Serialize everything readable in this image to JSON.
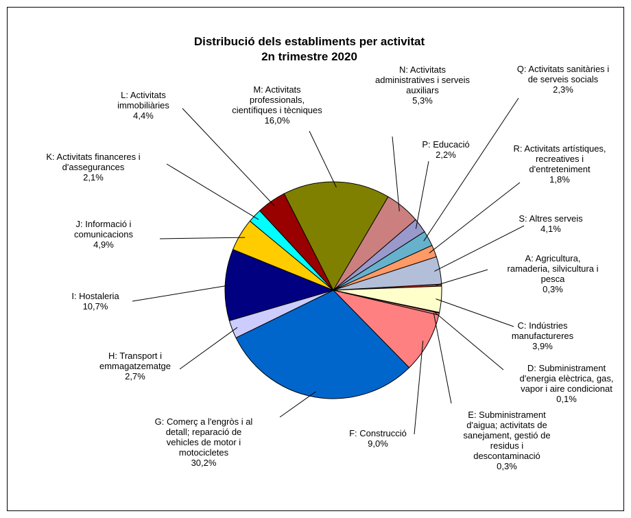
{
  "chart_data": {
    "type": "pie",
    "title": "Distribució dels establiments per activitat",
    "subtitle": "2n trimestre 2020",
    "slices": [
      {
        "code": "A",
        "lines": [
          "A: Agricultura,",
          "ramaderia, silvicultura i",
          "pesca"
        ],
        "pct_label": "0,3%",
        "value": 0.3,
        "color": "#cc3300"
      },
      {
        "code": "C",
        "lines": [
          "C: Indústries",
          "manufactureres"
        ],
        "pct_label": "3,9%",
        "value": 3.9,
        "color": "#ffffcc"
      },
      {
        "code": "D",
        "lines": [
          "D: Subministrament",
          "d'energia elèctrica, gas,",
          "vapor i aire condicionat"
        ],
        "pct_label": "0,1%",
        "value": 0.1,
        "color": "#ff8080"
      },
      {
        "code": "E",
        "lines": [
          "E: Subministrament",
          "d'aigua; activitats de",
          "sanejament, gestió de",
          "residus i",
          "descontaminació"
        ],
        "pct_label": "0,3%",
        "value": 0.3,
        "color": "#ff8080"
      },
      {
        "code": "F",
        "lines": [
          "F: Construcció"
        ],
        "pct_label": "9,0%",
        "value": 9.0,
        "color": "#ff8080"
      },
      {
        "code": "G",
        "lines": [
          "G: Comerç  a l'engròs i al",
          "detall; reparació de",
          "vehicles de motor  i",
          "motocicletes"
        ],
        "pct_label": "30,2%",
        "value": 30.2,
        "color": "#0066cc"
      },
      {
        "code": "H",
        "lines": [
          "H: Transport i",
          "emmagatzematge"
        ],
        "pct_label": "2,7%",
        "value": 2.7,
        "color": "#ccccff"
      },
      {
        "code": "I",
        "lines": [
          "I: Hostaleria"
        ],
        "pct_label": "10,7%",
        "value": 10.7,
        "color": "#000080"
      },
      {
        "code": "J",
        "lines": [
          "J: Informació i",
          "comunicacions"
        ],
        "pct_label": "4,9%",
        "value": 4.9,
        "color": "#ffcc00"
      },
      {
        "code": "K",
        "lines": [
          "K: Activitats financeres i",
          "d'assegurances"
        ],
        "pct_label": "2,1%",
        "value": 2.1,
        "color": "#00ffff"
      },
      {
        "code": "L",
        "lines": [
          "L: Activitats",
          "immobiliàries"
        ],
        "pct_label": "4,4%",
        "value": 4.4,
        "color": "#990000"
      },
      {
        "code": "M",
        "lines": [
          "M: Activitats",
          "professionals,",
          "científiques i tècniques"
        ],
        "pct_label": "16,0%",
        "value": 16.0,
        "color": "#808000"
      },
      {
        "code": "N",
        "lines": [
          "N: Activitats",
          "administratives i serveis",
          "auxiliars"
        ],
        "pct_label": "5,3%",
        "value": 5.3,
        "color": "#cc7f7f"
      },
      {
        "code": "P",
        "lines": [
          "P: Educació"
        ],
        "pct_label": "2,2%",
        "value": 2.2,
        "color": "#9999cc"
      },
      {
        "code": "Q",
        "lines": [
          "Q: Activitats sanitàries i",
          "de serveis socials"
        ],
        "pct_label": "2,3%",
        "value": 2.3,
        "color": "#66b2cc"
      },
      {
        "code": "R",
        "lines": [
          "R: Activitats artístiques,",
          "recreatives i",
          "d'entreteniment"
        ],
        "pct_label": "1,8%",
        "value": 1.8,
        "color": "#ff9966"
      },
      {
        "code": "S",
        "lines": [
          "S: Altres serveis"
        ],
        "pct_label": "4,1%",
        "value": 4.1,
        "color": "#b3bfd9"
      }
    ]
  }
}
